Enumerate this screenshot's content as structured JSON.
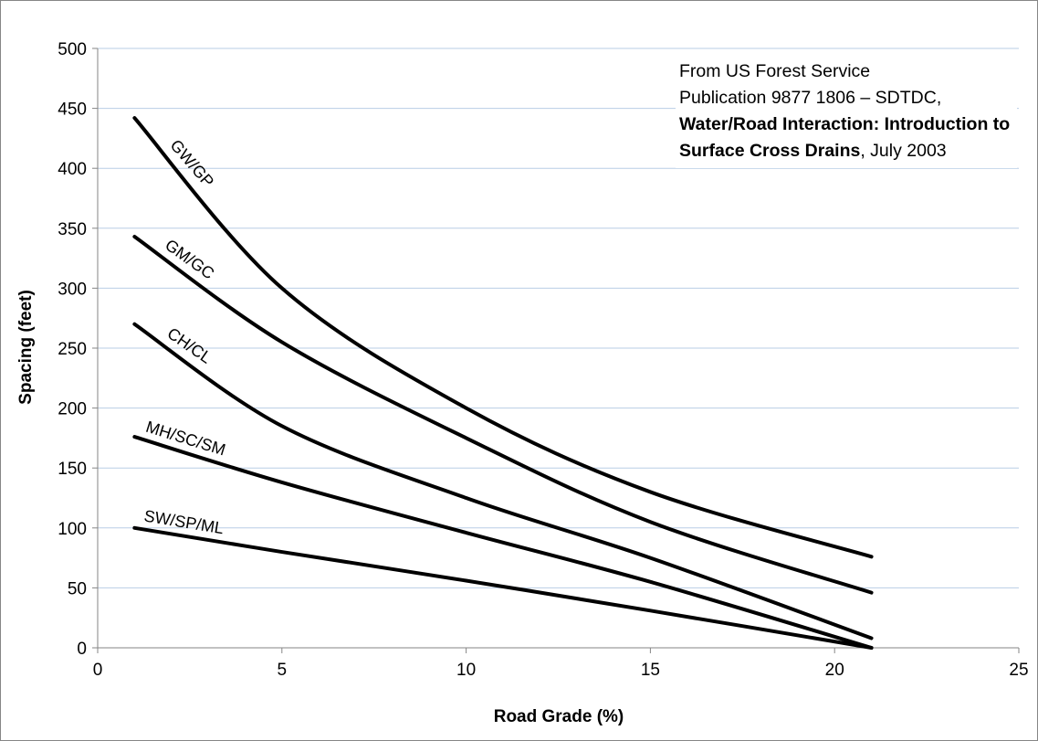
{
  "chart_data": {
    "type": "line",
    "xlabel": "Road Grade (%)",
    "ylabel": "Spacing (feet)",
    "xlim": [
      0,
      25
    ],
    "ylim": [
      0,
      500
    ],
    "x_ticks": [
      0,
      5,
      10,
      15,
      20,
      25
    ],
    "y_ticks": [
      0,
      50,
      100,
      150,
      200,
      250,
      300,
      350,
      400,
      450,
      500
    ],
    "grid": "horizontal",
    "colors": {
      "line": "#000000",
      "grid": "#b9cde5",
      "axis": "#868686",
      "border": "#868686"
    },
    "series": [
      {
        "name": "GW/GP",
        "x": [
          1,
          5,
          10,
          15,
          21
        ],
        "y": [
          442,
          300,
          200,
          130,
          76
        ]
      },
      {
        "name": "GM/GC",
        "x": [
          1,
          5,
          10,
          15,
          21
        ],
        "y": [
          343,
          255,
          175,
          105,
          46
        ]
      },
      {
        "name": "CH/CL",
        "x": [
          1,
          5,
          10,
          15,
          21
        ],
        "y": [
          270,
          185,
          125,
          75,
          8
        ]
      },
      {
        "name": "MH/SC/SM",
        "x": [
          1,
          5,
          10,
          15,
          21
        ],
        "y": [
          176,
          138,
          96,
          55,
          0
        ]
      },
      {
        "name": "SW/SP/ML",
        "x": [
          1,
          5,
          10,
          15,
          21
        ],
        "y": [
          100,
          80,
          56,
          31,
          0
        ]
      }
    ]
  },
  "source_note": {
    "line1": "From US Forest Service",
    "line2": "Publication 9877 1806 – SDTDC,",
    "title_bold": "Water/Road Interaction: Introduction to Surface Cross Drains",
    "date": ", July 2003"
  }
}
